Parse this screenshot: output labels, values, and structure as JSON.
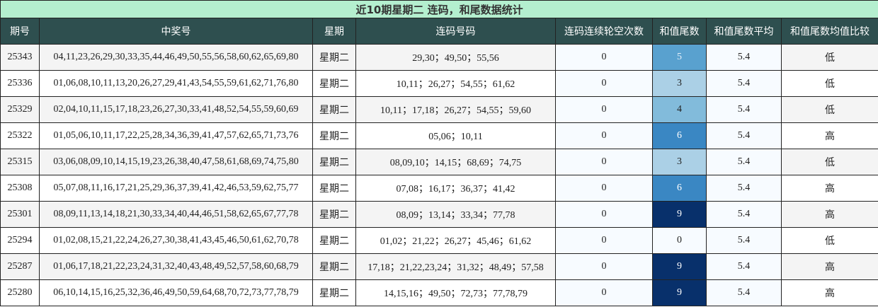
{
  "title": "近10期星期二 连码，和尾数据统计",
  "headers": [
    "期号",
    "中奖号",
    "星期",
    "连码号码",
    "连码连续轮空次数",
    "和值尾数",
    "和值尾数平均",
    "和值尾数均值比较"
  ],
  "tail_colors": {
    "0": "#f7fbff",
    "3": "#abd0e6",
    "4": "#82bbdb",
    "5": "#59a1cf",
    "6": "#3a87c3",
    "9": "#08306b"
  },
  "rows": [
    {
      "issue": "25343",
      "numbers": "04,11,23,26,29,30,33,35,44,46,49,50,55,56,58,60,62,65,69,80",
      "weekday": "星期二",
      "consecutive": "29,30；49,50；55,56",
      "miss": "0",
      "tail": "5",
      "avg": "5.4",
      "cmp": "低"
    },
    {
      "issue": "25336",
      "numbers": "01,06,08,10,11,13,20,26,27,29,41,43,54,55,59,61,62,71,76,80",
      "weekday": "星期二",
      "consecutive": "10,11；26,27；54,55；61,62",
      "miss": "0",
      "tail": "3",
      "avg": "5.4",
      "cmp": "低"
    },
    {
      "issue": "25329",
      "numbers": "02,04,10,11,15,17,18,23,26,27,30,33,41,48,52,54,55,59,60,69",
      "weekday": "星期二",
      "consecutive": "10,11；17,18；26,27；54,55；59,60",
      "miss": "0",
      "tail": "4",
      "avg": "5.4",
      "cmp": "低"
    },
    {
      "issue": "25322",
      "numbers": "01,05,06,10,11,17,22,25,28,34,36,39,41,47,57,62,65,71,73,76",
      "weekday": "星期二",
      "consecutive": "05,06；10,11",
      "miss": "0",
      "tail": "6",
      "avg": "5.4",
      "cmp": "高"
    },
    {
      "issue": "25315",
      "numbers": "03,06,08,09,10,14,15,19,23,26,38,40,47,58,61,68,69,74,75,80",
      "weekday": "星期二",
      "consecutive": "08,09,10；14,15；68,69；74,75",
      "miss": "0",
      "tail": "3",
      "avg": "5.4",
      "cmp": "低"
    },
    {
      "issue": "25308",
      "numbers": "05,07,08,11,16,17,21,25,29,36,37,39,41,42,46,53,59,62,75,77",
      "weekday": "星期二",
      "consecutive": "07,08；16,17；36,37；41,42",
      "miss": "0",
      "tail": "6",
      "avg": "5.4",
      "cmp": "高"
    },
    {
      "issue": "25301",
      "numbers": "08,09,11,13,14,18,21,30,33,34,40,44,46,51,58,62,65,67,77,78",
      "weekday": "星期二",
      "consecutive": "08,09；13,14；33,34；77,78",
      "miss": "0",
      "tail": "9",
      "avg": "5.4",
      "cmp": "高"
    },
    {
      "issue": "25294",
      "numbers": "01,02,08,15,21,22,24,26,27,30,38,41,43,45,46,50,61,62,70,78",
      "weekday": "星期二",
      "consecutive": "01,02；21,22；26,27；45,46；61,62",
      "miss": "0",
      "tail": "0",
      "avg": "5.4",
      "cmp": "低"
    },
    {
      "issue": "25287",
      "numbers": "01,06,17,18,21,22,23,24,31,32,40,43,48,49,52,57,58,60,68,79",
      "weekday": "星期二",
      "consecutive": "17,18；21,22,23,24；31,32；48,49；57,58",
      "miss": "0",
      "tail": "9",
      "avg": "5.4",
      "cmp": "高"
    },
    {
      "issue": "25280",
      "numbers": "06,10,14,15,16,25,32,36,46,49,50,59,64,68,70,72,73,77,78,79",
      "weekday": "星期二",
      "consecutive": "14,15,16；49,50；72,73；77,78,79",
      "miss": "0",
      "tail": "9",
      "avg": "5.4",
      "cmp": "高"
    }
  ]
}
